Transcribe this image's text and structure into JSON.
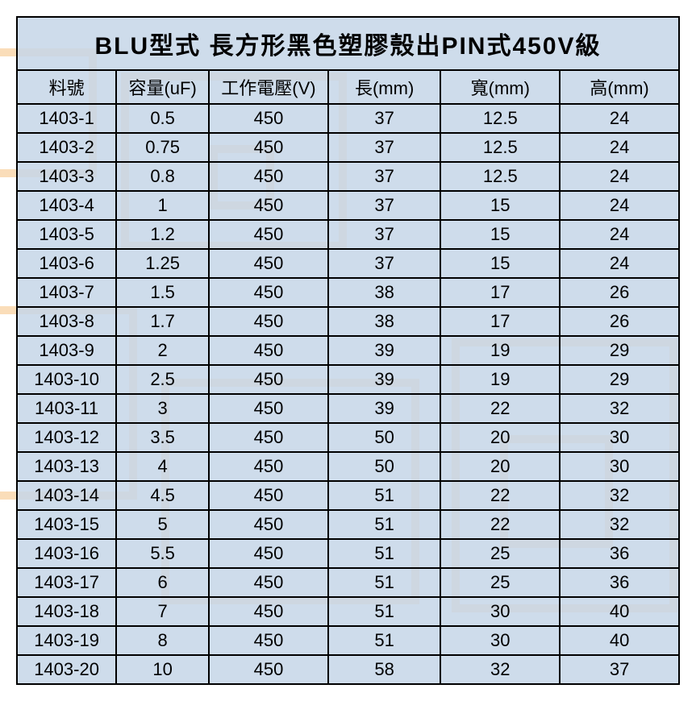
{
  "table": {
    "type": "table",
    "title": "BLU型式 長方形黑色塑膠殼出PIN式450V級",
    "title_fontsize": 30,
    "cell_fontsize": 22,
    "border_color": "#000000",
    "border_width": 2,
    "cell_bg_color": "#c5d6e8",
    "text_color": "#000000",
    "watermark_color": "#f7c78a",
    "columns": [
      {
        "key": "part_no",
        "label": "料號",
        "width_pct": 15
      },
      {
        "key": "capacitance",
        "label": "容量(uF)",
        "width_pct": 14
      },
      {
        "key": "voltage",
        "label": "工作電壓(V)",
        "width_pct": 18
      },
      {
        "key": "length",
        "label": "長(mm)",
        "width_pct": 17
      },
      {
        "key": "width",
        "label": "寬(mm)",
        "width_pct": 18
      },
      {
        "key": "height",
        "label": "高(mm)",
        "width_pct": 18
      }
    ],
    "rows": [
      [
        "1403-1",
        "0.5",
        "450",
        "37",
        "12.5",
        "24"
      ],
      [
        "1403-2",
        "0.75",
        "450",
        "37",
        "12.5",
        "24"
      ],
      [
        "1403-3",
        "0.8",
        "450",
        "37",
        "12.5",
        "24"
      ],
      [
        "1403-4",
        "1",
        "450",
        "37",
        "15",
        "24"
      ],
      [
        "1403-5",
        "1.2",
        "450",
        "37",
        "15",
        "24"
      ],
      [
        "1403-6",
        "1.25",
        "450",
        "37",
        "15",
        "24"
      ],
      [
        "1403-7",
        "1.5",
        "450",
        "38",
        "17",
        "26"
      ],
      [
        "1403-8",
        "1.7",
        "450",
        "38",
        "17",
        "26"
      ],
      [
        "1403-9",
        "2",
        "450",
        "39",
        "19",
        "29"
      ],
      [
        "1403-10",
        "2.5",
        "450",
        "39",
        "19",
        "29"
      ],
      [
        "1403-11",
        "3",
        "450",
        "39",
        "22",
        "32"
      ],
      [
        "1403-12",
        "3.5",
        "450",
        "50",
        "20",
        "30"
      ],
      [
        "1403-13",
        "4",
        "450",
        "50",
        "20",
        "30"
      ],
      [
        "1403-14",
        "4.5",
        "450",
        "51",
        "22",
        "32"
      ],
      [
        "1403-15",
        "5",
        "450",
        "51",
        "22",
        "32"
      ],
      [
        "1403-16",
        "5.5",
        "450",
        "51",
        "25",
        "36"
      ],
      [
        "1403-17",
        "6",
        "450",
        "51",
        "25",
        "36"
      ],
      [
        "1403-18",
        "7",
        "450",
        "51",
        "30",
        "40"
      ],
      [
        "1403-19",
        "8",
        "450",
        "51",
        "30",
        "40"
      ],
      [
        "1403-20",
        "10",
        "450",
        "58",
        "32",
        "37"
      ]
    ]
  }
}
